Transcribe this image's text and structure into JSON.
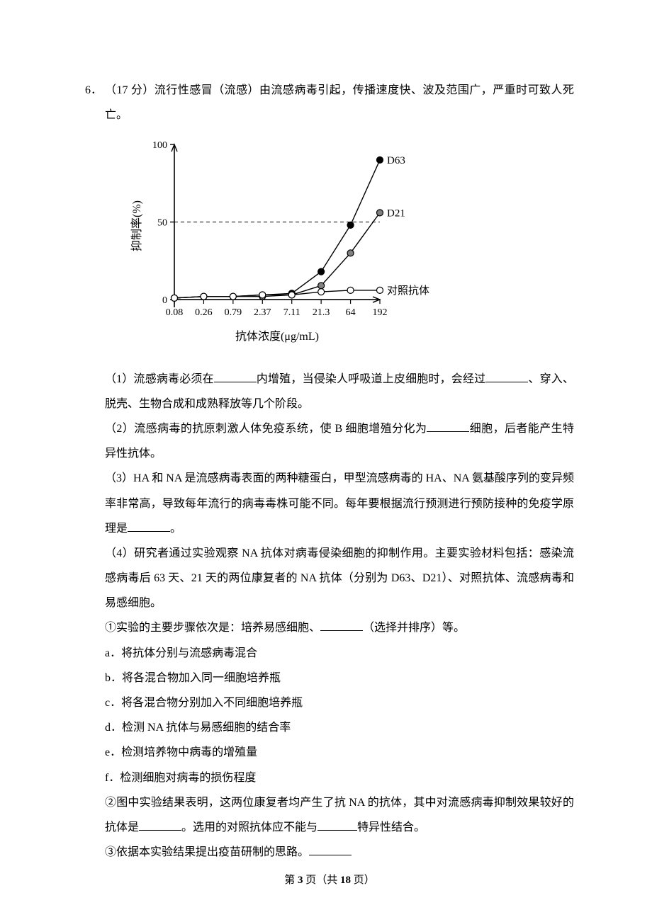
{
  "question": {
    "number": "6．",
    "points": "（17 分）",
    "stem": "流行性感冒（流感）由流感病毒引起，传播速度快、波及范围广，严重时可致人死亡。"
  },
  "chart": {
    "type": "line",
    "x_label": "抗体浓度(μg/mL)",
    "y_label": "抑制率(%)",
    "x_ticks": [
      "0.08",
      "0.26",
      "0.79",
      "2.37",
      "7.11",
      "21.3",
      "64",
      "192"
    ],
    "y_ticks": [
      0,
      50,
      100
    ],
    "ylim": [
      -5,
      100
    ],
    "series": [
      {
        "name": "D63",
        "label": "D63",
        "color": "#000000",
        "fill": "#000000",
        "marker": "circle",
        "values": [
          1,
          2,
          2,
          3,
          4,
          18,
          48,
          90
        ]
      },
      {
        "name": "D21",
        "label": "D21",
        "color": "#000000",
        "fill": "#808080",
        "marker": "circle",
        "values": [
          1,
          2,
          2,
          2,
          3,
          9,
          30,
          56
        ]
      },
      {
        "name": "control",
        "label": "对照抗体",
        "color": "#000000",
        "fill": "#ffffff",
        "marker": "circle",
        "values": [
          1,
          2,
          2,
          3,
          3,
          5,
          6,
          6
        ]
      }
    ],
    "dashed_ref": 50,
    "axis_color": "#000000",
    "tick_fontsize": 14,
    "label_fontsize": 16,
    "marker_radius": 4.5,
    "line_width": 1.4
  },
  "parts": {
    "p1_a": "（1）流感病毒必须在",
    "p1_b": "内增殖，当侵染人呼吸道上皮细胞时，会经过",
    "p1_c": "、穿入、脱壳、生物合成和成熟释放等几个阶段。",
    "p2_a": "（2）流感病毒的抗原刺激人体免疫系统，使 B 细胞增殖分化为",
    "p2_b": "细胞，后者能产生特异性抗体。",
    "p3_a": "（3）HA 和 NA 是流感病毒表面的两种糖蛋白，甲型流感病毒的 HA、NA 氨基酸序列的变异频率非常高，导致每年流行的病毒毒株可能不同。每年要根据流行预测进行预防接种的免疫学原理是",
    "p3_b": "。",
    "p4_intro": "（4）研究者通过实验观察 NA 抗体对病毒侵染细胞的抑制作用。主要实验材料包括：感染流感病毒后 63 天、21 天的两位康复者的 NA 抗体（分别为 D63、D21）、对照抗体、流感病毒和易感细胞。",
    "p4_1_a": "①实验的主要步骤依次是：培养易感细胞、",
    "p4_1_b": "（选择并排序）等。",
    "opt_a": "a．将抗体分别与流感病毒混合",
    "opt_b": "b．将各混合物加入同一细胞培养瓶",
    "opt_c": "c．将各混合物分别加入不同细胞培养瓶",
    "opt_d": "d．检测 NA 抗体与易感细胞的结合率",
    "opt_e": "e．检测培养物中病毒的增殖量",
    "opt_f": "f．检测细胞对病毒的损伤程度",
    "p4_2_a": "②图中实验结果表明，这两位康复者均产生了抗 NA 的抗体，其中对流感病毒抑制效果较好的抗体是",
    "p4_2_b": "。选用的对照抗体应不能与",
    "p4_2_c": "特异性结合。",
    "p4_3": "③依据本实验结果提出疫苗研制的思路。"
  },
  "footer": {
    "prefix": "第 ",
    "page": "3",
    "mid": " 页（共 ",
    "total": "18",
    "suffix": " 页）"
  }
}
